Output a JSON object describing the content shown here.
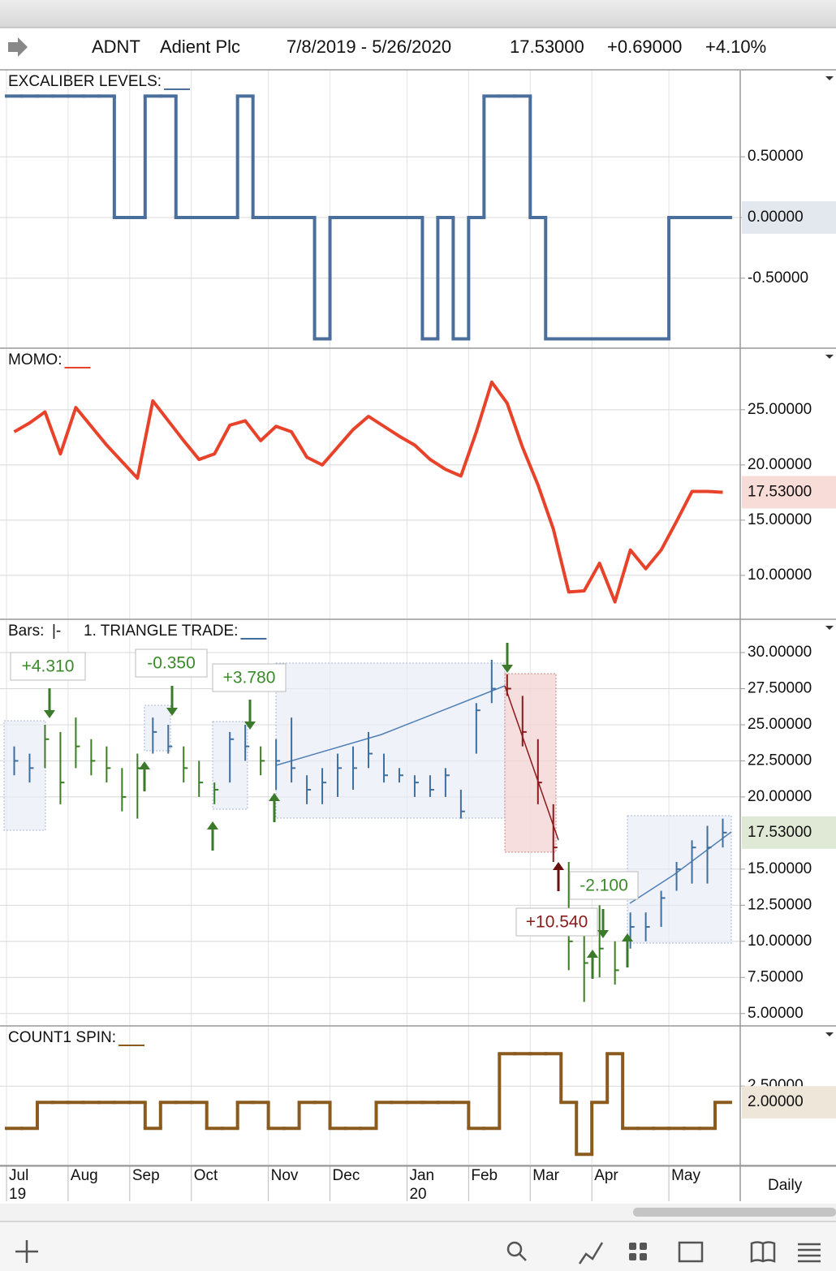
{
  "header": {
    "symbol": "ADNT",
    "name": "Adient Plc",
    "range": "7/8/2019 - 5/26/2020",
    "last": "17.53000",
    "change": "+0.69000",
    "change_pct": "+4.10%"
  },
  "timeframe": "Daily",
  "x_axis": {
    "categories": [
      "Jul",
      null,
      null,
      null,
      "Aug",
      null,
      null,
      null,
      "Sep",
      null,
      null,
      null,
      "Oct",
      null,
      null,
      null,
      null,
      "Nov",
      null,
      null,
      null,
      "Dec",
      null,
      null,
      null,
      null,
      "Jan",
      null,
      null,
      null,
      "Feb",
      null,
      null,
      null,
      "Mar",
      null,
      null,
      null,
      "Apr",
      null,
      null,
      null,
      null,
      "May",
      null,
      null,
      null
    ],
    "year_labels": [
      "19",
      null,
      null,
      null,
      null,
      null,
      null,
      null,
      null,
      null,
      null,
      null,
      null,
      null,
      null,
      null,
      null,
      null,
      null,
      null,
      null,
      null,
      null,
      null,
      null,
      null,
      "20",
      null,
      null,
      null,
      null,
      null,
      null,
      null,
      null,
      null,
      null,
      null,
      null,
      null,
      null,
      null,
      null,
      null,
      null,
      null,
      null
    ]
  },
  "chart_data": [
    {
      "type": "step",
      "title": "EXCALIBER LEVELS:",
      "color": "#4b6f9d",
      "values": [
        1,
        1,
        1,
        1,
        1,
        1,
        1,
        0,
        0,
        1,
        1,
        0,
        0,
        0,
        0,
        1,
        0,
        0,
        0,
        0,
        -1,
        0,
        0,
        0,
        0,
        0,
        0,
        -1,
        0,
        -1,
        0,
        1,
        1,
        1,
        0,
        -1,
        -1,
        -1,
        -1,
        -1,
        -1,
        -1,
        -1,
        0,
        0,
        0,
        0
      ],
      "ylim": [
        -1.07,
        1.21
      ],
      "yticks": [
        {
          "value": 0.5,
          "label": "0.50000"
        },
        {
          "value": 0,
          "label": "0.00000"
        },
        {
          "value": -0.5,
          "label": "-0.50000"
        }
      ],
      "current": {
        "value": 0,
        "label": "0.00000"
      },
      "current_fill": "#e3e7ee",
      "current_text": "#2e4d78",
      "grid": true
    },
    {
      "type": "line",
      "title": "MOMO:",
      "color": "#e8432a",
      "values": [
        23.0,
        23.8,
        24.8,
        21.0,
        25.2,
        23.5,
        21.8,
        20.3,
        18.8,
        25.8,
        24.0,
        22.2,
        20.5,
        21.0,
        23.6,
        24.0,
        22.2,
        23.5,
        23.0,
        20.7,
        20.0,
        21.6,
        23.2,
        24.4,
        23.5,
        22.6,
        21.8,
        20.5,
        19.6,
        19.0,
        23.0,
        27.5,
        25.6,
        21.6,
        18.2,
        14.2,
        8.5,
        8.6,
        11.1,
        7.6,
        12.3,
        10.6,
        12.3,
        14.9,
        17.6,
        17.6,
        17.53
      ],
      "ylim": [
        6.1,
        30.5
      ],
      "yticks": [
        {
          "value": 25,
          "label": "25.00000"
        },
        {
          "value": 20,
          "label": "20.00000"
        },
        {
          "value": 15,
          "label": "15.00000"
        },
        {
          "value": 10,
          "label": "10.00000"
        }
      ],
      "current": {
        "value": 17.53,
        "label": "17.53000"
      },
      "current_fill": "#f8dcd8",
      "current_text": "#b8321f",
      "grid": true
    },
    {
      "type": "ohlc",
      "title": "Bars:",
      "subtitle": "|-",
      "study": "1. TRIANGLE TRADE:",
      "color": "#3f6f9e",
      "high": [
        23.5,
        23,
        25,
        24.5,
        25.5,
        24,
        23.5,
        22,
        23,
        25.5,
        25,
        23.5,
        22.5,
        21,
        24.5,
        25,
        23.5,
        24,
        25.5,
        21.5,
        22,
        23,
        23.5,
        24.5,
        23,
        22,
        21.5,
        21.5,
        22,
        20.5,
        26.5,
        29.5,
        28.5,
        27,
        24,
        19.5,
        15.5,
        11,
        12.5,
        10,
        12,
        12,
        13.5,
        15.5,
        17,
        18,
        18.5
      ],
      "low": [
        21.5,
        21,
        22,
        19.5,
        22,
        21.5,
        21,
        19,
        18.5,
        23,
        23,
        21,
        20,
        19.5,
        21,
        22.5,
        21.5,
        20.5,
        21,
        19.5,
        19.5,
        20,
        20.5,
        22,
        21,
        21,
        20,
        20,
        20,
        18.5,
        23,
        26.5,
        27,
        23.5,
        19.5,
        15.5,
        8,
        5.8,
        7.5,
        7,
        9.5,
        10,
        11,
        13.5,
        14,
        14,
        16.5
      ],
      "close": [
        22.5,
        22,
        24,
        21,
        23.5,
        22.5,
        22,
        20,
        22,
        24.5,
        23.5,
        22,
        21,
        20.5,
        24,
        23.5,
        22.5,
        22.5,
        22,
        20.5,
        21,
        22,
        22,
        23,
        21.5,
        21.5,
        21,
        20.5,
        21.5,
        19,
        26,
        27.5,
        27.5,
        24.5,
        21,
        16.5,
        10,
        8.5,
        9.5,
        8,
        11,
        11,
        13,
        15,
        16.5,
        16.5,
        17.53
      ],
      "bar_colors": [
        "#3f6f9e",
        "#3f6f9e",
        "#3b7d23",
        "#3b7d23",
        "#3b7d23",
        "#3b7d23",
        "#3b7d23",
        "#3b7d23",
        "#3b7d23",
        "#3f6f9e",
        "#3f6f9e",
        "#3b7d23",
        "#3b7d23",
        "#3b7d23",
        "#3f6f9e",
        "#3f6f9e",
        "#3b7d23",
        "#3f6f9e",
        "#3f6f9e",
        "#3f6f9e",
        "#3f6f9e",
        "#3f6f9e",
        "#3f6f9e",
        "#3f6f9e",
        "#3f6f9e",
        "#3f6f9e",
        "#3f6f9e",
        "#3f6f9e",
        "#3f6f9e",
        "#3f6f9e",
        "#3f6f9e",
        "#3f6f9e",
        "#8b1a1a",
        "#8b1a1a",
        "#8b1a1a",
        "#8b1a1a",
        "#3b7d23",
        "#3b7d23",
        "#3b7d23",
        "#3b7d23",
        "#3f6f9e",
        "#3f6f9e",
        "#3f6f9e",
        "#3f6f9e",
        "#3f6f9e",
        "#3f6f9e",
        "#3f6f9e"
      ],
      "ylim": [
        4.2,
        32.25
      ],
      "yticks": [
        {
          "value": 30,
          "label": "30.00000"
        },
        {
          "value": 27.5,
          "label": "27.50000"
        },
        {
          "value": 25,
          "label": "25.00000"
        },
        {
          "value": 22.5,
          "label": "22.50000"
        },
        {
          "value": 20,
          "label": "20.00000"
        },
        {
          "value": 15,
          "label": "15.00000"
        },
        {
          "value": 12.5,
          "label": "12.50000"
        },
        {
          "value": 10,
          "label": "10.00000"
        },
        {
          "value": 7.5,
          "label": "7.50000"
        },
        {
          "value": 5,
          "label": "5.00000"
        }
      ],
      "current": {
        "value": 17.53,
        "label": "17.53000"
      },
      "current_fill": "#dfe9d6",
      "current_text": "#2f5a1e",
      "grid": true,
      "annotations": [
        {
          "text": "+4.310",
          "color": "#3a8a2a"
        },
        {
          "text": "-0.350",
          "color": "#3a8a2a"
        },
        {
          "text": "+3.780",
          "color": "#3a8a2a"
        },
        {
          "text": "+10.540",
          "color": "#8b1a1a"
        },
        {
          "text": "-2.100",
          "color": "#3a8a2a"
        }
      ]
    },
    {
      "type": "step",
      "title": "COUNT1 SPIN:",
      "color": "#8b5a1e",
      "values": [
        1.2,
        1.2,
        2,
        2,
        2,
        2,
        2,
        2,
        2,
        1.2,
        2,
        2,
        2,
        1.2,
        1.2,
        2,
        2,
        1.2,
        1.2,
        2,
        2,
        1.2,
        1.2,
        1.2,
        2,
        2,
        2,
        2,
        2,
        2,
        1.2,
        1.2,
        3.5,
        3.5,
        3.5,
        3.5,
        2,
        0.4,
        2,
        3.5,
        1.2,
        1.2,
        1.2,
        1.2,
        1.2,
        1.2,
        2
      ],
      "ylim": [
        0.08,
        4.33
      ],
      "yticks": [
        {
          "value": 2.5,
          "label": "2.50000"
        }
      ],
      "current": {
        "value": 2,
        "label": "2.00000"
      },
      "current_fill": "#efe6da",
      "current_text": "#5a3a12",
      "grid": true
    }
  ]
}
